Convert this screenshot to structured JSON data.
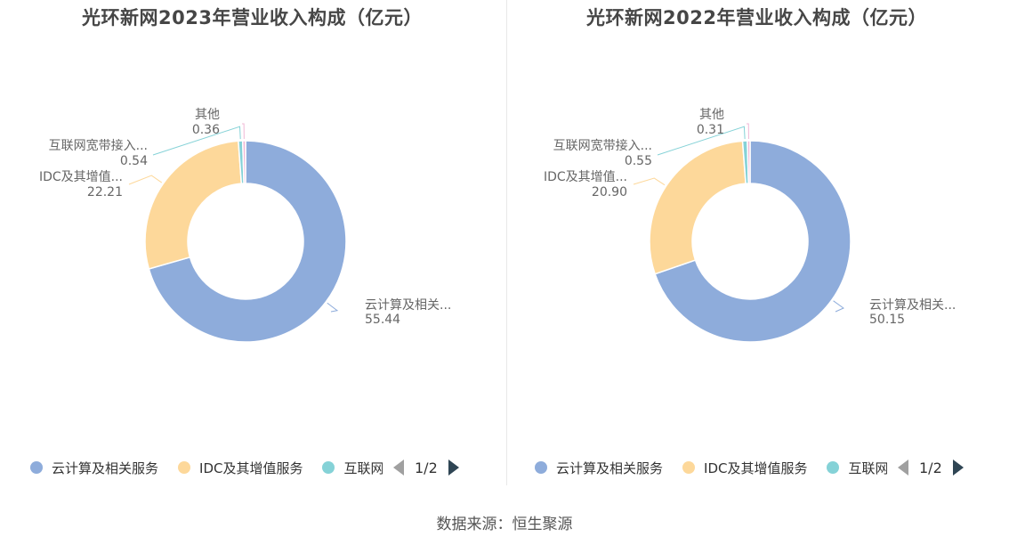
{
  "source": "数据来源：恒生聚源",
  "chart_data": [
    {
      "type": "pie",
      "title": "光环新网2023年营业收入构成（亿元）",
      "donut": true,
      "slices": [
        {
          "name": "云计算及相关服务",
          "label": "云计算及相关...",
          "value": 55.44,
          "value_label": "55.44",
          "color": "#8eacdb"
        },
        {
          "name": "IDC及其增值服务",
          "label": "IDC及其增值...",
          "value": 22.21,
          "value_label": "22.21",
          "color": "#fdd89a"
        },
        {
          "name": "互联网宽带接入服务",
          "label": "互联网宽带接入...",
          "value": 0.54,
          "value_label": "0.54",
          "color": "#85d2d7"
        },
        {
          "name": "其他",
          "label": "其他",
          "value": 0.36,
          "value_label": "0.36",
          "color": "#f0b8d6"
        }
      ],
      "legend": {
        "items": [
          "云计算及相关服务",
          "IDC及其增值服务",
          "互联网宽带接入服务"
        ],
        "page": "1/2",
        "placement": "bottom"
      }
    },
    {
      "type": "pie",
      "title": "光环新网2022年营业收入构成（亿元）",
      "donut": true,
      "slices": [
        {
          "name": "云计算及相关服务",
          "label": "云计算及相关...",
          "value": 50.15,
          "value_label": "50.15",
          "color": "#8eacdb"
        },
        {
          "name": "IDC及其增值服务",
          "label": "IDC及其增值...",
          "value": 20.9,
          "value_label": "20.90",
          "color": "#fdd89a"
        },
        {
          "name": "互联网宽带接入服务",
          "label": "互联网宽带接入...",
          "value": 0.55,
          "value_label": "0.55",
          "color": "#85d2d7"
        },
        {
          "name": "其他",
          "label": "其他",
          "value": 0.31,
          "value_label": "0.31",
          "color": "#f0b8d6"
        }
      ],
      "legend": {
        "items": [
          "云计算及相关服务",
          "IDC及其增值服务",
          "互联网宽带接入服务"
        ],
        "page": "1/2",
        "placement": "bottom"
      }
    }
  ]
}
